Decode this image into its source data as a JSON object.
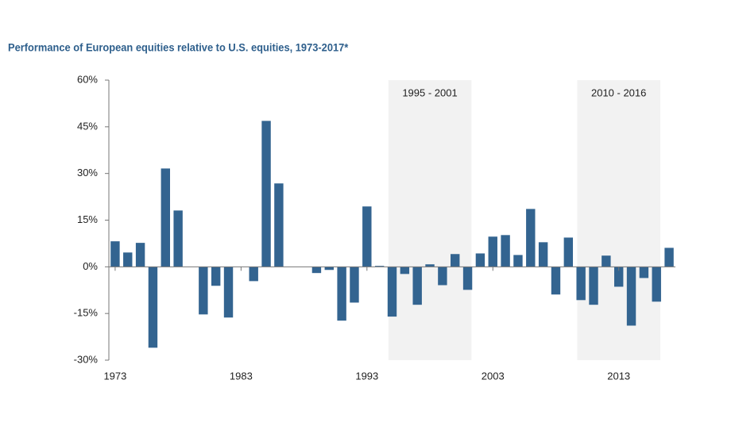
{
  "chart_data": {
    "type": "bar",
    "title": "Performance of European equities relative to U.S. equities, 1973-2017*",
    "categories": [
      "1973",
      null,
      null,
      null,
      null,
      null,
      null,
      null,
      null,
      null,
      "1983",
      null,
      null,
      null,
      null,
      null,
      null,
      null,
      null,
      null,
      "1993",
      null,
      null,
      null,
      null,
      null,
      null,
      null,
      null,
      null,
      "2003",
      null,
      null,
      null,
      null,
      null,
      null,
      null,
      null,
      null,
      "2013",
      null,
      null,
      null,
      null
    ],
    "values": [
      8.2,
      4.6,
      7.7,
      -26,
      31.6,
      18.1,
      0,
      -15.3,
      -6.1,
      -16.3,
      0,
      -4.6,
      46.9,
      26.8,
      0,
      0,
      -2,
      -1,
      -17.3,
      -11.5,
      19.4,
      0.3,
      -16,
      -2.3,
      -12.2,
      0.8,
      -5.9,
      4.1,
      -7.4,
      4.3,
      9.7,
      10.2,
      3.8,
      18.6,
      7.9,
      -8.9,
      9.4,
      -10.7,
      -12.2,
      3.6,
      -6.4,
      -18.9,
      -3.6,
      -11.2,
      6.1
    ],
    "color": "#336490",
    "ylim": [
      -30,
      60
    ],
    "yticks": [
      {
        "value": -30,
        "label": "-30%"
      },
      {
        "value": -15,
        "label": "-15%"
      },
      {
        "value": 0,
        "label": "0%"
      },
      {
        "value": 15,
        "label": "15%"
      },
      {
        "value": 30,
        "label": "30%"
      },
      {
        "value": 45,
        "label": "45%"
      },
      {
        "value": 60,
        "label": "60%"
      }
    ],
    "grid": false,
    "shaded": [
      {
        "label": "1995 - 2001",
        "from": 1995,
        "to": 2001,
        "color": "#f2f2f2"
      },
      {
        "label": "2010 - 2016",
        "from": 2010,
        "to": 2016,
        "color": "#f2f2f2"
      }
    ]
  }
}
